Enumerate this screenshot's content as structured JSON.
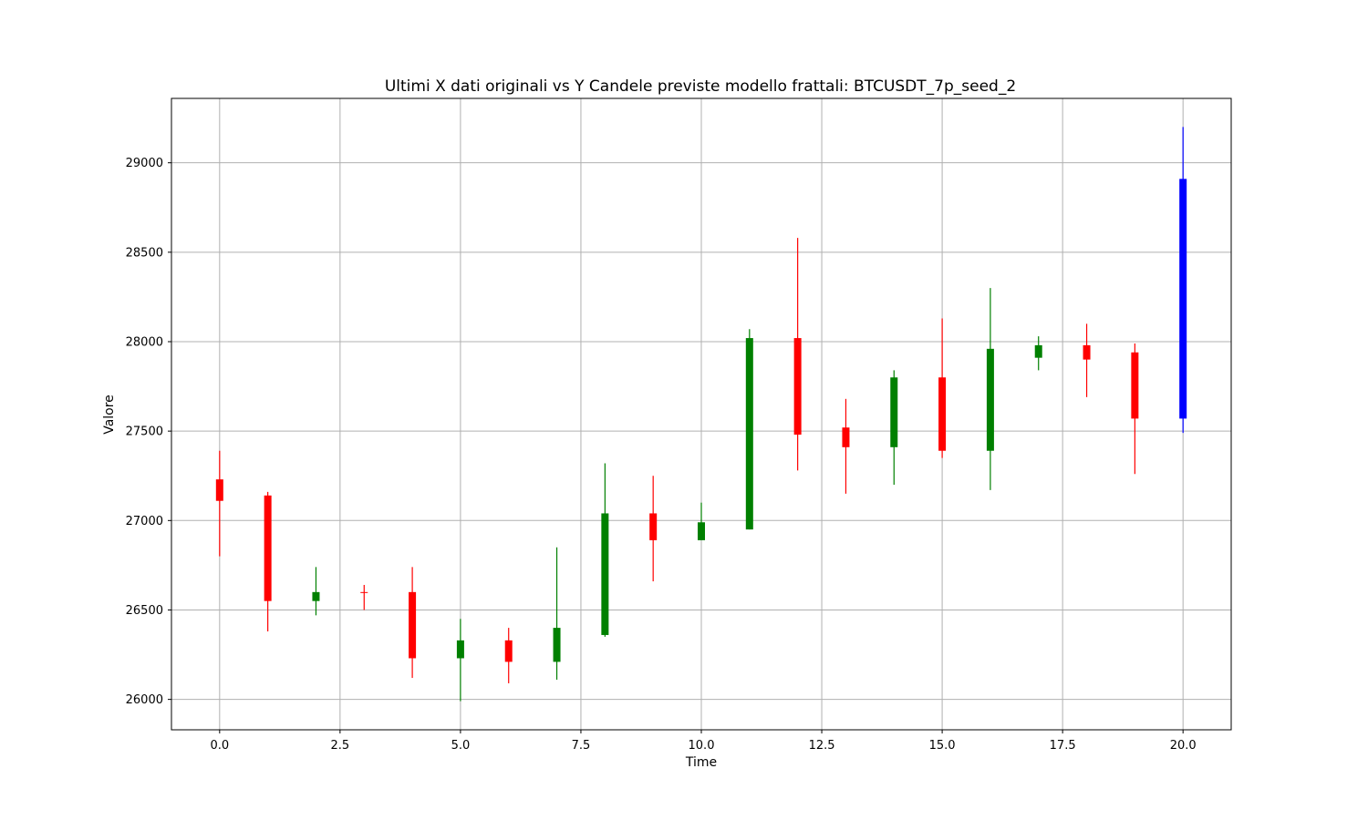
{
  "chart_data": {
    "type": "candlestick",
    "title": "Ultimi X dati originali vs Y Candele previste modello frattali: BTCUSDT_7p_seed_2",
    "xlabel": "Time",
    "ylabel": "Valore",
    "xlim": [
      -1,
      21
    ],
    "ylim": [
      25830,
      29360
    ],
    "xticks": [
      0.0,
      2.5,
      5.0,
      7.5,
      10.0,
      12.5,
      15.0,
      17.5,
      20.0
    ],
    "xtick_labels": [
      "0.0",
      "2.5",
      "5.0",
      "7.5",
      "10.0",
      "12.5",
      "15.0",
      "17.5",
      "20.0"
    ],
    "yticks": [
      26000,
      26500,
      27000,
      27500,
      28000,
      28500,
      29000
    ],
    "ytick_labels": [
      "26000",
      "26500",
      "27000",
      "27500",
      "28000",
      "28500",
      "29000"
    ],
    "grid": true,
    "colors": {
      "up": "#008000",
      "down": "#ff0000",
      "predicted": "#0000ff"
    },
    "candles": [
      {
        "t": 0,
        "open": 27230,
        "high": 27390,
        "low": 26800,
        "close": 27110,
        "kind": "down"
      },
      {
        "t": 1,
        "open": 27140,
        "high": 27160,
        "low": 26380,
        "close": 26550,
        "kind": "down"
      },
      {
        "t": 2,
        "open": 26550,
        "high": 26740,
        "low": 26470,
        "close": 26600,
        "kind": "up"
      },
      {
        "t": 3,
        "open": 26600,
        "high": 26640,
        "low": 26500,
        "close": 26600,
        "kind": "down"
      },
      {
        "t": 4,
        "open": 26600,
        "high": 26740,
        "low": 26120,
        "close": 26230,
        "kind": "down"
      },
      {
        "t": 5,
        "open": 26230,
        "high": 26450,
        "low": 25990,
        "close": 26330,
        "kind": "up"
      },
      {
        "t": 6,
        "open": 26330,
        "high": 26400,
        "low": 26090,
        "close": 26210,
        "kind": "down"
      },
      {
        "t": 7,
        "open": 26210,
        "high": 26850,
        "low": 26110,
        "close": 26400,
        "kind": "up"
      },
      {
        "t": 8,
        "open": 26360,
        "high": 27320,
        "low": 26350,
        "close": 27040,
        "kind": "up"
      },
      {
        "t": 9,
        "open": 27040,
        "high": 27250,
        "low": 26660,
        "close": 26890,
        "kind": "down"
      },
      {
        "t": 10,
        "open": 26890,
        "high": 27100,
        "low": 26890,
        "close": 26990,
        "kind": "up"
      },
      {
        "t": 11,
        "open": 26950,
        "high": 28070,
        "low": 26950,
        "close": 28020,
        "kind": "up"
      },
      {
        "t": 12,
        "open": 28020,
        "high": 28580,
        "low": 27280,
        "close": 27480,
        "kind": "down"
      },
      {
        "t": 13,
        "open": 27520,
        "high": 27680,
        "low": 27150,
        "close": 27410,
        "kind": "down"
      },
      {
        "t": 14,
        "open": 27410,
        "high": 27840,
        "low": 27200,
        "close": 27800,
        "kind": "up"
      },
      {
        "t": 15,
        "open": 27800,
        "high": 28130,
        "low": 27350,
        "close": 27390,
        "kind": "down"
      },
      {
        "t": 16,
        "open": 27390,
        "high": 28300,
        "low": 27170,
        "close": 27960,
        "kind": "up"
      },
      {
        "t": 17,
        "open": 27910,
        "high": 28030,
        "low": 27840,
        "close": 27980,
        "kind": "up"
      },
      {
        "t": 18,
        "open": 27980,
        "high": 28100,
        "low": 27690,
        "close": 27900,
        "kind": "down"
      },
      {
        "t": 19,
        "open": 27940,
        "high": 27990,
        "low": 27260,
        "close": 27570,
        "kind": "down"
      },
      {
        "t": 20,
        "open": 27570,
        "high": 29200,
        "low": 27490,
        "close": 28910,
        "kind": "predicted"
      }
    ]
  }
}
